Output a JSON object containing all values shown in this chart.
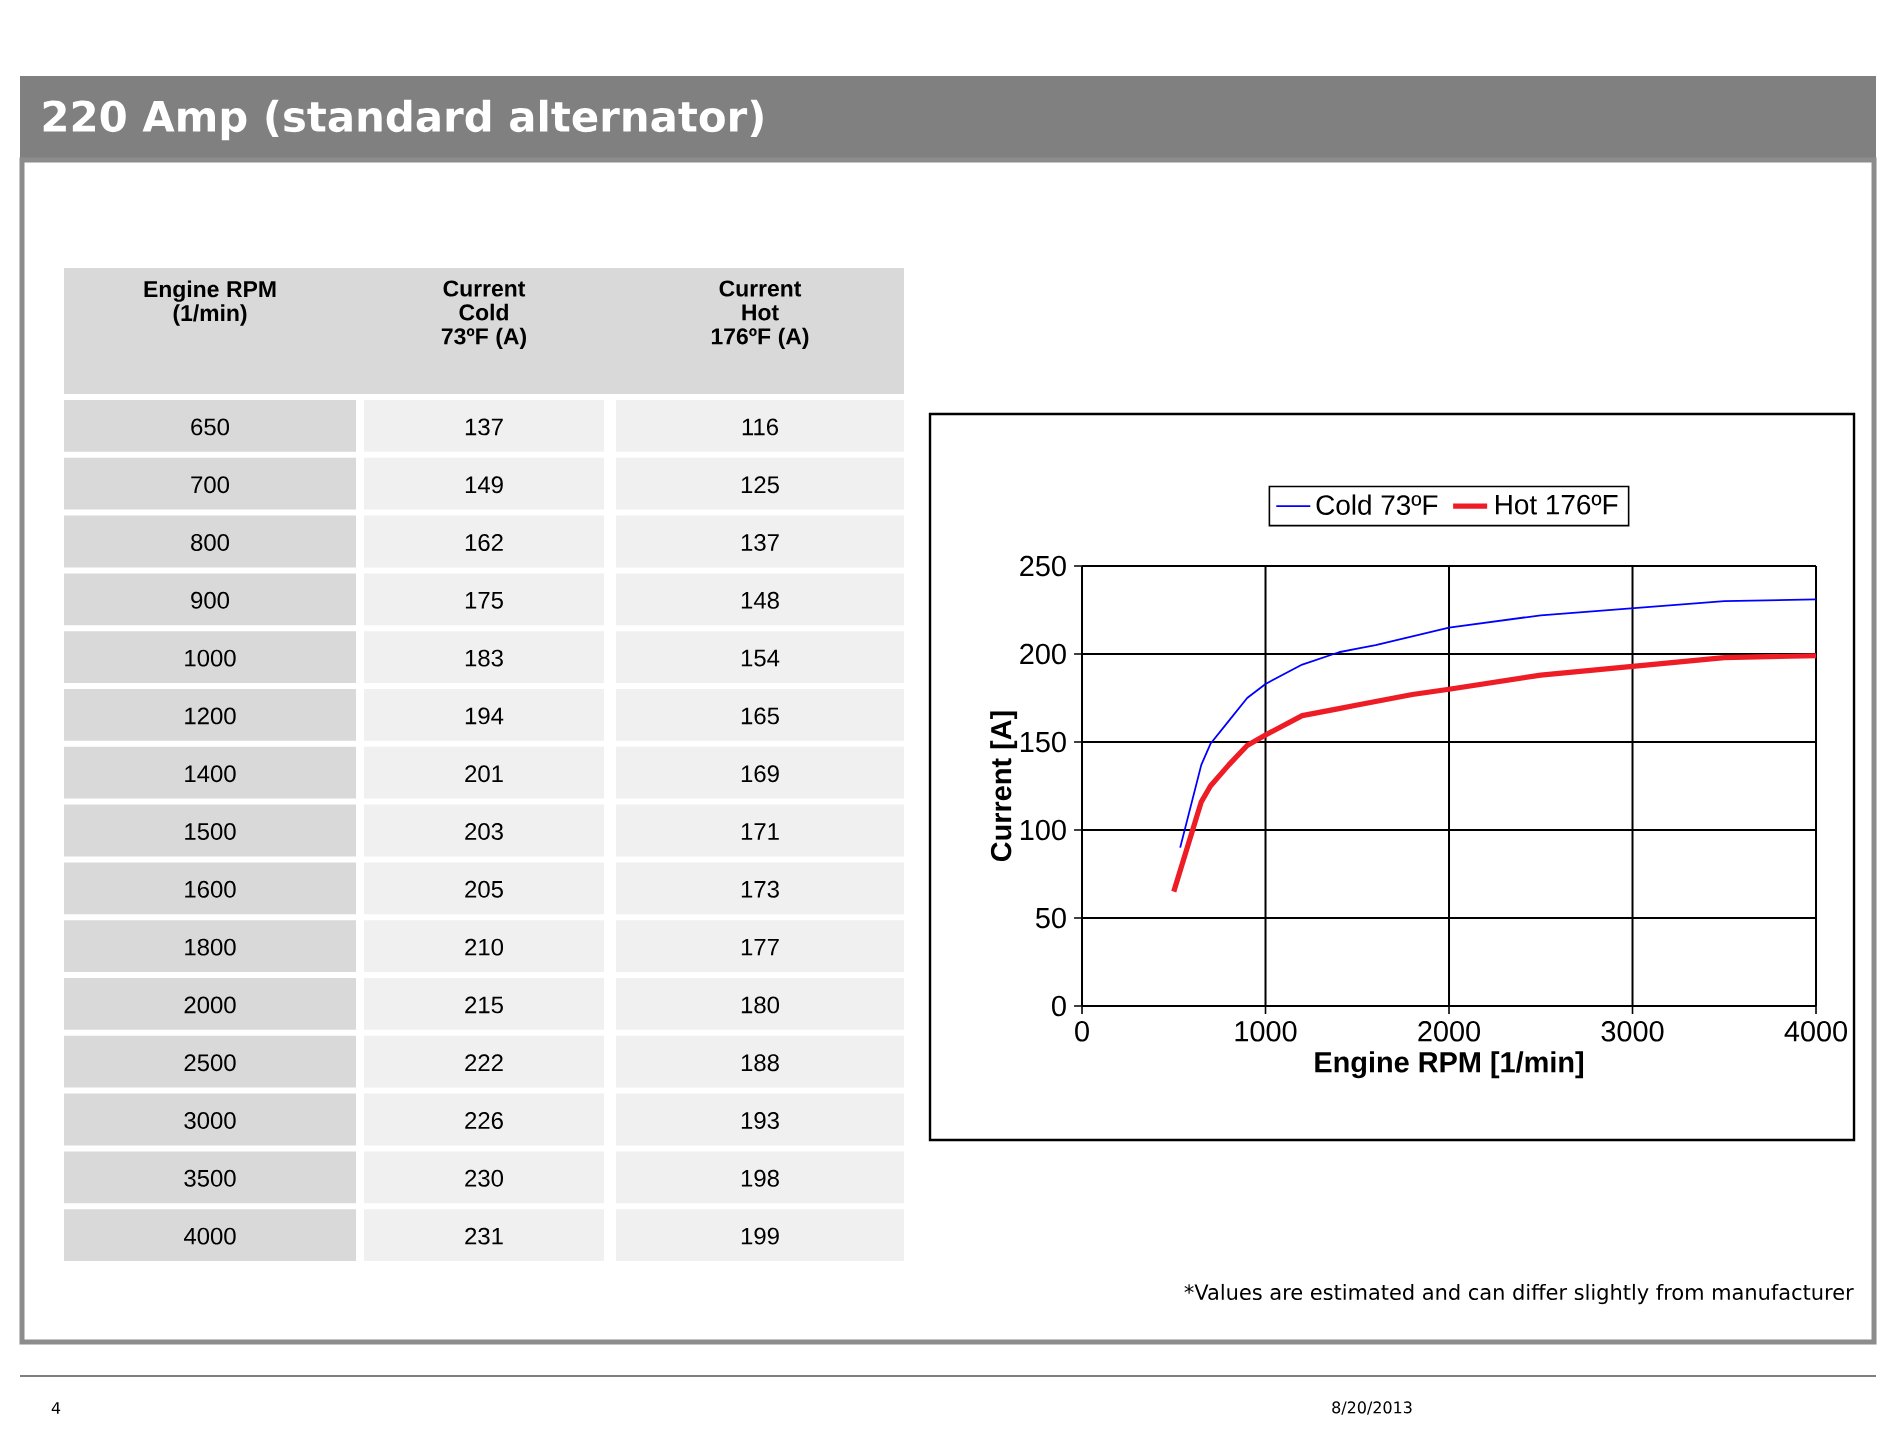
{
  "chart_data": [
    {
      "type": "line",
      "xlabel": "Engine RPM [1/min]",
      "ylabel": "Current [A]",
      "x": [
        500,
        650,
        700,
        800,
        900,
        1000,
        1200,
        1400,
        1500,
        1600,
        1800,
        2000,
        2500,
        3000,
        3500,
        4000
      ],
      "series": [
        {
          "name": "Cold 73ºF",
          "color": "#0000ff",
          "x": [
            535,
            650,
            700,
            800,
            900,
            1000,
            1200,
            1400,
            1500,
            1600,
            1800,
            2000,
            2500,
            3000,
            3500,
            4000
          ],
          "values": [
            90,
            137,
            149,
            162,
            175,
            183,
            194,
            201,
            203,
            205,
            210,
            215,
            222,
            226,
            230,
            231
          ]
        },
        {
          "name": "Hot 176ºF",
          "color": "#ee1c25",
          "values": [
            65,
            116,
            125,
            137,
            148,
            154,
            165,
            169,
            171,
            173,
            177,
            180,
            188,
            193,
            198,
            199
          ]
        }
      ],
      "xlim": [
        0,
        4000
      ],
      "xticks": [
        0,
        1000,
        2000,
        3000,
        4000
      ],
      "ylim": [
        0,
        250
      ],
      "yticks": [
        0,
        50,
        100,
        150,
        200,
        250
      ],
      "grid": true,
      "legend": "top",
      "annotations": [
        "*Values are estimated and can differ slightly from manufacturer",
        "4",
        "8/20/2013"
      ]
    },
    {
      "type": "other",
      "title": "220 Amp (standard alternator)",
      "annotations": [
        "Engine RPM (1/min)",
        "Current Cold 73ºF (A)",
        "Current Hot 176ºF (A)",
        "650",
        "137",
        "116",
        "700",
        "149",
        "125",
        "800",
        "162",
        "137",
        "900",
        "175",
        "148",
        "1000",
        "183",
        "154",
        "1200",
        "194",
        "165",
        "1400",
        "201",
        "169",
        "1500",
        "203",
        "171",
        "1600",
        "205",
        "173",
        "1800",
        "210",
        "177",
        "2000",
        "215",
        "180",
        "2500",
        "222",
        "188",
        "3000",
        "226",
        "193",
        "3500",
        "230",
        "198",
        "4000",
        "231",
        "199"
      ]
    }
  ]
}
